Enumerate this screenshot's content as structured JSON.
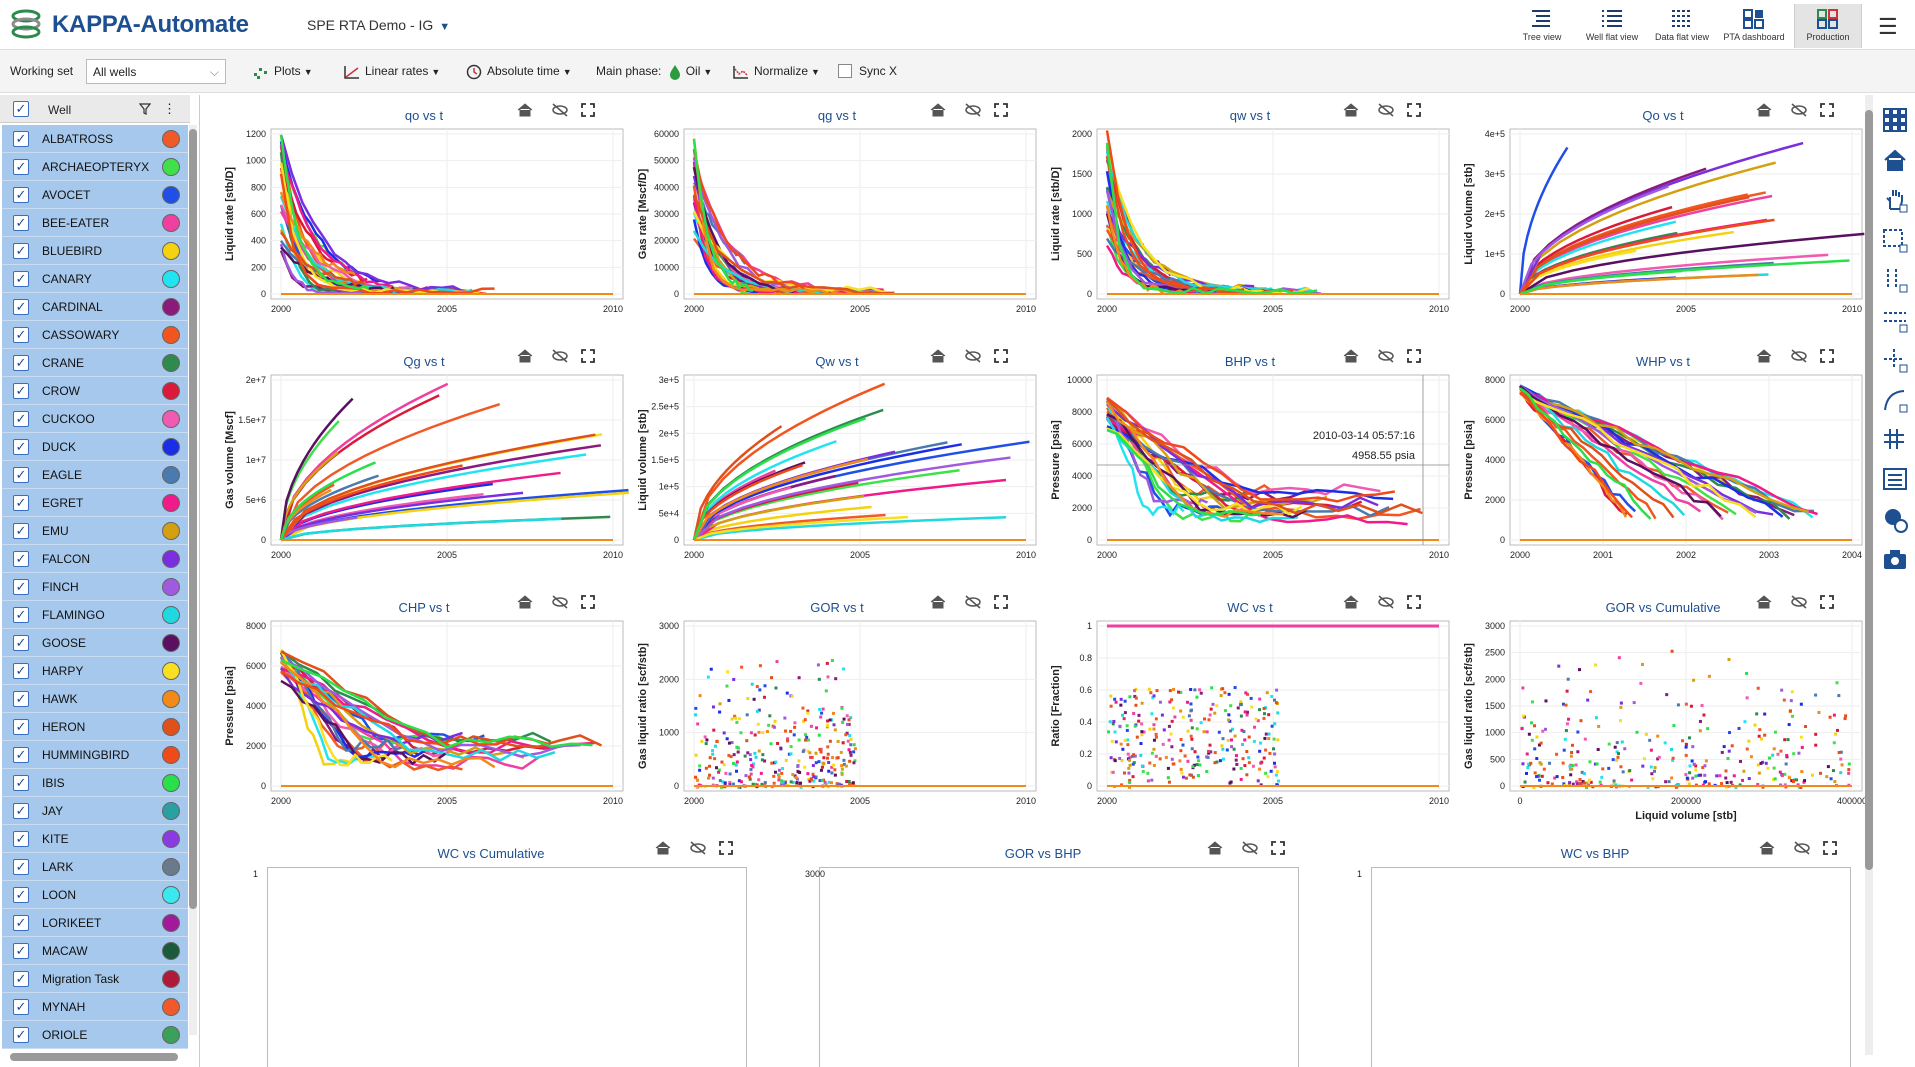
{
  "app": {
    "title": "KAPPA-Automate",
    "project": "SPE RTA Demo - IG"
  },
  "views": [
    {
      "label": "Tree view",
      "icon": "tree-view-icon"
    },
    {
      "label": "Well flat view",
      "icon": "well-flat-view-icon"
    },
    {
      "label": "Data flat view",
      "icon": "data-flat-view-icon"
    },
    {
      "label": "PTA dashboard",
      "icon": "pta-dashboard-icon"
    },
    {
      "label": "Production",
      "icon": "production-icon"
    }
  ],
  "toolbar": {
    "working_set_label": "Working set",
    "working_set_value": "All wells",
    "plots": "Plots",
    "rates": "Linear rates",
    "time": "Absolute time",
    "phase_label": "Main phase:",
    "phase_value": "Oil",
    "normalize": "Normalize",
    "sync": "Sync X"
  },
  "sidebar": {
    "column_header": "Well",
    "wells": [
      {
        "name": "ALBATROSS",
        "color": "#f05a28"
      },
      {
        "name": "ARCHAEOPTERYX",
        "color": "#3fe04a"
      },
      {
        "name": "AVOCET",
        "color": "#1f4fe8"
      },
      {
        "name": "BEE-EATER",
        "color": "#ef3fa0"
      },
      {
        "name": "BLUEBIRD",
        "color": "#f4d20f"
      },
      {
        "name": "CANARY",
        "color": "#22e3f0"
      },
      {
        "name": "CARDINAL",
        "color": "#8a1a7c"
      },
      {
        "name": "CASSOWARY",
        "color": "#f2551e"
      },
      {
        "name": "CRANE",
        "color": "#2f8a4e"
      },
      {
        "name": "CROW",
        "color": "#d91a3a"
      },
      {
        "name": "CUCKOO",
        "color": "#f05ab0"
      },
      {
        "name": "DUCK",
        "color": "#1a2ee8"
      },
      {
        "name": "EAGLE",
        "color": "#4a7ab0"
      },
      {
        "name": "EGRET",
        "color": "#f01a8a"
      },
      {
        "name": "EMU",
        "color": "#d4a00f"
      },
      {
        "name": "FALCON",
        "color": "#7a2ee0"
      },
      {
        "name": "FINCH",
        "color": "#a05ae0"
      },
      {
        "name": "FLAMINGO",
        "color": "#1fd8e0"
      },
      {
        "name": "GOOSE",
        "color": "#5a1060"
      },
      {
        "name": "HARPY",
        "color": "#f8e020"
      },
      {
        "name": "HAWK",
        "color": "#f28a1a"
      },
      {
        "name": "HERON",
        "color": "#e0501a"
      },
      {
        "name": "HUMMINGBIRD",
        "color": "#f04a1a"
      },
      {
        "name": "IBIS",
        "color": "#2ae04a"
      },
      {
        "name": "JAY",
        "color": "#2aa0a0"
      },
      {
        "name": "KITE",
        "color": "#8a3ae0"
      },
      {
        "name": "LARK",
        "color": "#6a7a8a"
      },
      {
        "name": "LOON",
        "color": "#3ae8f0"
      },
      {
        "name": "LORIKEET",
        "color": "#a01a9a"
      },
      {
        "name": "MACAW",
        "color": "#1a5a3a"
      },
      {
        "name": "Migration Task",
        "color": "#b01a3a"
      },
      {
        "name": "MYNAH",
        "color": "#f05a2a"
      },
      {
        "name": "ORIOLE",
        "color": "#3aa05a"
      }
    ]
  },
  "plots": [
    {
      "title": "qo vs t",
      "ylabel": "Liquid rate [stb/D]",
      "yticks": [
        "1200",
        "1000",
        "800",
        "600",
        "400",
        "200",
        "0"
      ],
      "xticks": [
        "2000",
        "2005",
        "2010"
      ]
    },
    {
      "title": "qg vs t",
      "ylabel": "Gas rate [Mscf/D]",
      "yticks": [
        "60000",
        "50000",
        "40000",
        "30000",
        "20000",
        "10000",
        "0"
      ],
      "xticks": [
        "2000",
        "2005",
        "2010"
      ]
    },
    {
      "title": "qw vs t",
      "ylabel": "Liquid rate [stb/D]",
      "yticks": [
        "2000",
        "1500",
        "1000",
        "500",
        "0"
      ],
      "xticks": [
        "2000",
        "2005",
        "2010"
      ]
    },
    {
      "title": "Qo vs t",
      "ylabel": "Liquid volume [stb]",
      "yticks": [
        "4e+5",
        "3e+5",
        "2e+5",
        "1e+5",
        "0"
      ],
      "xticks": [
        "2000",
        "2005",
        "2010"
      ]
    },
    {
      "title": "Qg vs t",
      "ylabel": "Gas volume [Mscf]",
      "yticks": [
        "2e+7",
        "1.5e+7",
        "1e+7",
        "5e+6",
        "0"
      ],
      "xticks": [
        "2000",
        "2005",
        "2010"
      ]
    },
    {
      "title": "Qw vs t",
      "ylabel": "Liquid volume [stb]",
      "yticks": [
        "3e+5",
        "2.5e+5",
        "2e+5",
        "1.5e+5",
        "1e+5",
        "5e+4",
        "0"
      ],
      "xticks": [
        "2000",
        "2005",
        "2010"
      ]
    },
    {
      "title": "BHP vs t",
      "ylabel": "Pressure [psia]",
      "yticks": [
        "10000",
        "8000",
        "6000",
        "4000",
        "2000",
        "0"
      ],
      "xticks": [
        "2000",
        "2005",
        "2010"
      ],
      "tooltip": [
        "2010-03-14 05:57:16",
        "4958.55 psia"
      ]
    },
    {
      "title": "WHP vs t",
      "ylabel": "Pressure [psia]",
      "yticks": [
        "8000",
        "6000",
        "4000",
        "2000",
        "0"
      ],
      "xticks": [
        "2000",
        "2001",
        "2002",
        "2003",
        "2004"
      ]
    },
    {
      "title": "CHP vs t",
      "ylabel": "Pressure [psia]",
      "yticks": [
        "8000",
        "6000",
        "4000",
        "2000",
        "0"
      ],
      "xticks": [
        "2000",
        "2005",
        "2010"
      ]
    },
    {
      "title": "GOR vs t",
      "ylabel": "Gas liquid ratio [scf/stb]",
      "yticks": [
        "3000",
        "2000",
        "1000",
        "0"
      ],
      "xticks": [
        "2000",
        "2005",
        "2010"
      ]
    },
    {
      "title": "WC vs t",
      "ylabel": "Ratio [Fraction]",
      "yticks": [
        "1",
        "0.8",
        "0.6",
        "0.4",
        "0.2",
        "0"
      ],
      "xticks": [
        "2000",
        "2005",
        "2010"
      ]
    },
    {
      "title": "GOR vs Cumulative",
      "ylabel": "Gas liquid ratio [scf/stb]",
      "yticks": [
        "3000",
        "2500",
        "2000",
        "1500",
        "1000",
        "500",
        "0"
      ],
      "xticks": [
        "0",
        "200000",
        "400000"
      ],
      "xlabel": "Liquid volume [stb]"
    }
  ],
  "bottom_plots": [
    {
      "title": "WC vs Cumulative",
      "ytick": "1"
    },
    {
      "title": "GOR vs BHP",
      "ytick": "3000"
    },
    {
      "title": "WC vs BHP",
      "ytick": "1"
    }
  ]
}
